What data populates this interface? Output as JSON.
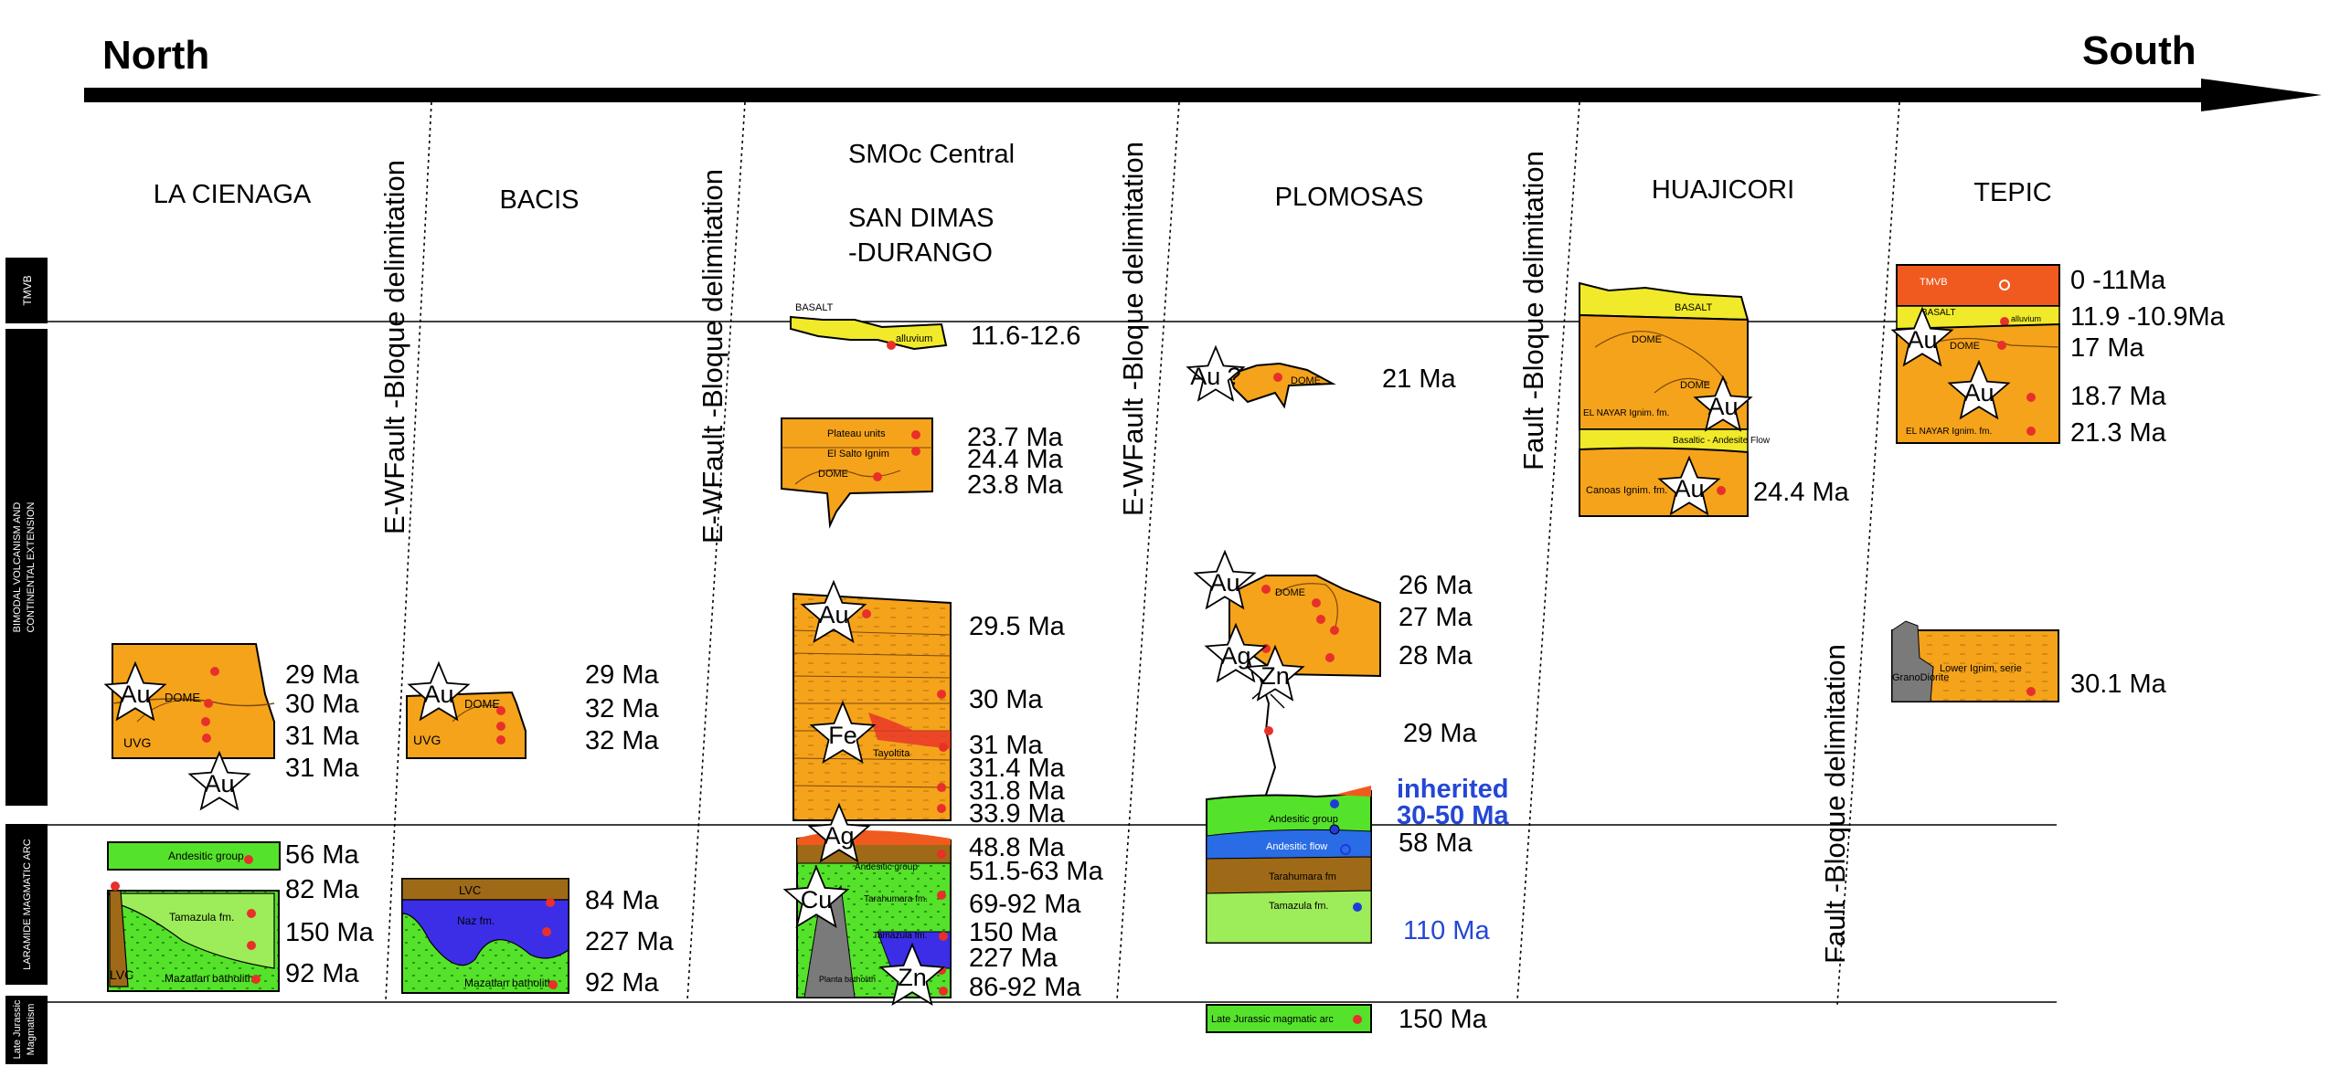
{
  "direction": {
    "left": "North",
    "right": "South"
  },
  "era_labels": {
    "tmvb": "TMVB",
    "bimodal": [
      "BIMODAL VOLCANISM AND",
      "CONTINENTAL EXTENSION"
    ],
    "laramide": "LARAMIDE MAGMATIC ARC",
    "jurassic": [
      "Late Jurassic",
      "Magmatism"
    ]
  },
  "delimitations": {
    "d1": "E-WFault -Bloque delimitation",
    "d2": "E-WFault -Bloque delimitation",
    "d3": "E-WFault -Bloque delimitation",
    "d4": "Fault -Bloque delimitation",
    "d5": "Fault -Bloque delimitation"
  },
  "regions": {
    "la_cienaga": "LA CIENAGA",
    "bacis": "BACIS",
    "smoc_1": "SMOc Central",
    "smoc_2": "SAN DIMAS",
    "smoc_3": "-DURANGO",
    "plomosas": "PLOMOSAS",
    "huajicori": "HUAJICORI",
    "tepic": "TEPIC"
  },
  "ages": {
    "lc_a1": "29 Ma",
    "lc_a2": "30 Ma",
    "lc_a3": "31 Ma",
    "lc_a4": "31 Ma",
    "lc_b1": "56 Ma",
    "lc_b2": "82 Ma",
    "lc_b3": "150 Ma",
    "lc_b4": "92 Ma",
    "ba_a1": "29 Ma",
    "ba_a2": "32 Ma",
    "ba_a3": "32 Ma",
    "ba_b1": "84 Ma",
    "ba_b2": "227 Ma",
    "ba_b3": "92 Ma",
    "sd_1": "11.6-12.6",
    "sd_2": "23.7 Ma",
    "sd_3": "24.4 Ma",
    "sd_4": "23.8 Ma",
    "sd_5": "29.5 Ma",
    "sd_6": "30 Ma",
    "sd_7": "31 Ma",
    "sd_8": "31.4 Ma",
    "sd_9": "31.8 Ma",
    "sd_10": "33.9 Ma",
    "sd_11": "48.8 Ma",
    "sd_12": "51.5-63 Ma",
    "sd_13": "69-92 Ma",
    "sd_14": "150 Ma",
    "sd_15": "227 Ma",
    "sd_16": "86-92 Ma",
    "pl_1": "21 Ma",
    "pl_2": "26 Ma",
    "pl_3": "27 Ma",
    "pl_4": "28 Ma",
    "pl_5": "29 Ma",
    "pl_6": "inherited",
    "pl_7": "30-50 Ma",
    "pl_8": "58 Ma",
    "pl_9": "110 Ma",
    "pl_10": "150 Ma",
    "hu_1": "24.4 Ma",
    "te_1": "0 -11Ma",
    "te_2": "11.9 -10.9Ma",
    "te_3": "17 Ma",
    "te_4": "18.7 Ma",
    "te_5": "21.3 Ma",
    "te_6": "30.1 Ma"
  },
  "units": {
    "uvg1": "UVG",
    "dome1": "DOME",
    "andes1": "Andesitic group",
    "tam1": "Tamazula fm.",
    "lvc1": "LVC",
    "maz1": "Mazatlan batholith",
    "uvg2": "UVG",
    "dome2": "DOME",
    "lvc2": "LVC",
    "naz": "Naz fm.",
    "maz2": "Mazatlan batholith",
    "basalt1": "BASALT",
    "alluv1": "alluvium",
    "plateau": "Plateau units",
    "elsalto": "El Salto Ignim",
    "dome3": "DOME",
    "tayolt": "Tayoltita",
    "andes2": "Andesitic group",
    "tarah1": "Tarahumara fm.",
    "tamaz2": "Tamazula fm.",
    "planta": "Planta batholith",
    "dome4": "DOME",
    "andes3": "Andesitic group",
    "andflow": "Andesitic flow",
    "tarah2": "Tarahumara fm",
    "tamaz3": "Tamazula fm.",
    "latejur": "Late Jurassic magmatic arc",
    "basalt2": "BASALT",
    "dome5": "DOME",
    "dome6": "DOME",
    "nayar1": "EL NAYAR Ignim. fm.",
    "basandes": "Basaltic - Andesite Flow",
    "canoas": "Canoas Ignim. fm.",
    "tmvb2": "TMVB",
    "basalt3": "BASALT",
    "alluv3": "alluvium",
    "dome7": "DOME",
    "nayar2": "EL NAYAR Ignim. fm.",
    "grano": "GranoDiorite",
    "lower": "Lower Ignim. serie"
  },
  "minerals": {
    "au1": "Au",
    "au2": "Au",
    "au3": "Au",
    "au4": "Au",
    "au5": "Au",
    "au6": "Au ?",
    "au7": "Au",
    "au8": "Au",
    "au9": "Au",
    "au10": "Au",
    "ag1": "Ag",
    "ag2": "Ag",
    "fe1": "Fe",
    "cu1": "Cu",
    "zn1": "Zn",
    "zn2": "Zn"
  },
  "colors": {
    "orange": "#f5a31b",
    "green": "#55e22a",
    "blue": "#3b2ee6",
    "brown": "#9e6a17",
    "yellow": "#f0ea2a",
    "red_dot": "#e8302a",
    "blue_dot": "#1f3cd8",
    "tmvb_red": "#f05a1e",
    "inherited_blue": "#2447d6",
    "grey": "#7a7a7a"
  }
}
